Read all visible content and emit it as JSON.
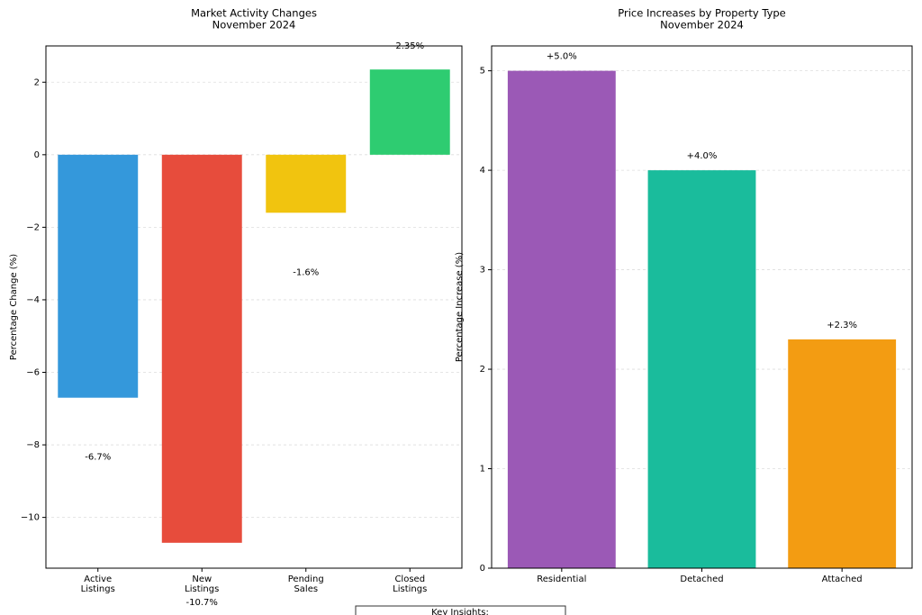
{
  "chart_data": [
    {
      "type": "bar",
      "title": "Market Activity Changes",
      "subtitle": "November 2024",
      "y_label": "Percentage Change (%)",
      "categories": [
        "Active\nListings",
        "New\nListings",
        "Pending\nSales",
        "Closed\nListings"
      ],
      "values": [
        -6.7,
        -10.7,
        -1.6,
        2.35
      ],
      "value_labels": [
        "-6.7%",
        "-10.7%",
        "-1.6%",
        "2.35%"
      ],
      "colors": [
        "#3498db",
        "#e74c3c",
        "#f1c40f",
        "#2ecc71"
      ],
      "ylim": [
        -11.4,
        3.0
      ],
      "yticks": [
        {
          "value": -10,
          "label": "−10"
        },
        {
          "value": -8,
          "label": "−8"
        },
        {
          "value": -6,
          "label": "−6"
        },
        {
          "value": -4,
          "label": "−4"
        },
        {
          "value": -2,
          "label": "−2"
        },
        0,
        2
      ],
      "grid": true
    },
    {
      "type": "bar",
      "title": "Price Increases by Property Type",
      "subtitle": "November 2024",
      "y_label": "Percentage Increase (%)",
      "categories": [
        "Residential",
        "Detached",
        "Attached"
      ],
      "values": [
        5.0,
        4.0,
        2.3
      ],
      "value_labels": [
        "+5.0%",
        "+4.0%",
        "+2.3%"
      ],
      "colors": [
        "#9b59b6",
        "#1abc9c",
        "#f39c12"
      ],
      "ylim": [
        0,
        5.25
      ],
      "yticks": [
        0,
        1,
        2,
        3,
        4,
        5
      ],
      "grid": true
    }
  ],
  "insights": {
    "title": "Key Insights:"
  }
}
